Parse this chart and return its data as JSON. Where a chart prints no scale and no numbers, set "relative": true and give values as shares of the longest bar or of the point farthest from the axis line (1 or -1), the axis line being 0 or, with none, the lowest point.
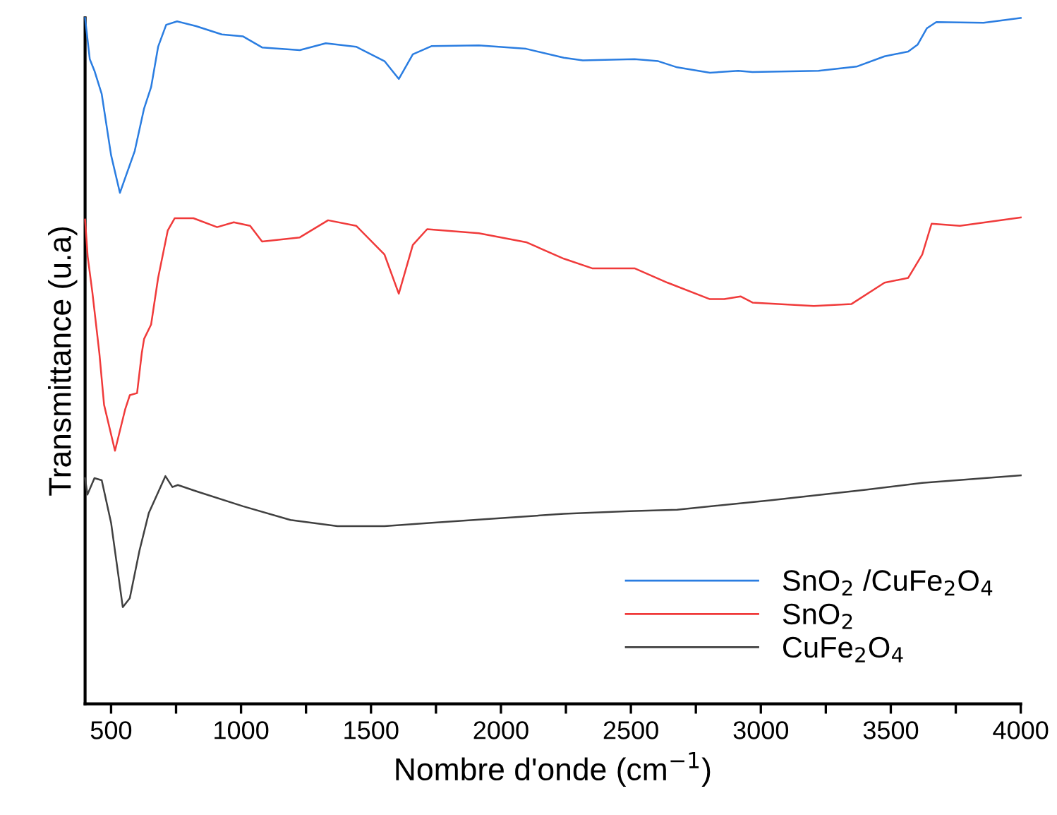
{
  "chart_data": {
    "type": "line",
    "relative": true,
    "xlabel": "Nombre d'onde (cm$^{−1}$)",
    "ylabel": "Transmittance (u.a)",
    "xlim": [
      400,
      4000
    ],
    "xticks": [
      500,
      {
        "value": 750,
        "label": null
      },
      1000,
      {
        "value": 1250,
        "label": null
      },
      1500,
      {
        "value": 1750,
        "label": null
      },
      2000,
      {
        "value": 2250,
        "label": null
      },
      2500,
      {
        "value": 2750,
        "label": null
      },
      3000,
      {
        "value": 3250,
        "label": null
      },
      3500,
      {
        "value": 3750,
        "label": null
      },
      4000
    ],
    "tick_labels": "x",
    "legend": "bottom right",
    "grid": false,
    "marker": "none",
    "line_style": "solid",
    "series": [
      {
        "name": "SnO$_{2}$ /CuFe$_{2}$O$_{4}$",
        "color": "#2a7de1",
        "x": [
          400,
          418,
          436,
          464,
          500,
          534,
          591,
          627,
          654,
          681,
          712,
          754,
          827,
          926,
          1008,
          1081,
          1226,
          1326,
          1443,
          1552,
          1607,
          1661,
          1734,
          1915,
          2097,
          2242,
          2315,
          2514,
          2605,
          2678,
          2804,
          2913,
          2968,
          3222,
          3368,
          3476,
          3567,
          3603,
          3639,
          3675,
          3857,
          4000
        ],
        "values": [
          1.0,
          0.94,
          0.923,
          0.889,
          0.8,
          0.745,
          0.806,
          0.868,
          0.899,
          0.958,
          0.99,
          0.995,
          0.988,
          0.976,
          0.973,
          0.957,
          0.953,
          0.963,
          0.958,
          0.937,
          0.911,
          0.947,
          0.959,
          0.96,
          0.955,
          0.942,
          0.938,
          0.94,
          0.937,
          0.928,
          0.92,
          0.923,
          0.921,
          0.923,
          0.929,
          0.944,
          0.951,
          0.961,
          0.985,
          0.994,
          0.993,
          1.0
        ]
      },
      {
        "name": "SnO$_{2}$",
        "color": "#f03a3a",
        "x": [
          400,
          410,
          428,
          455,
          473,
          515,
          554,
          572,
          600,
          618,
          627,
          654,
          681,
          718,
          745,
          817,
          908,
          972,
          1035,
          1081,
          1226,
          1335,
          1443,
          1552,
          1607,
          1661,
          1716,
          1915,
          2097,
          2242,
          2351,
          2514,
          2641,
          2804,
          2859,
          2922,
          2968,
          3204,
          3349,
          3476,
          3567,
          3621,
          3657,
          3766,
          4000
        ],
        "values": [
          0.706,
          0.652,
          0.6,
          0.511,
          0.436,
          0.369,
          0.429,
          0.45,
          0.453,
          0.511,
          0.532,
          0.553,
          0.621,
          0.69,
          0.708,
          0.708,
          0.695,
          0.702,
          0.697,
          0.674,
          0.68,
          0.705,
          0.697,
          0.655,
          0.598,
          0.669,
          0.692,
          0.686,
          0.673,
          0.649,
          0.635,
          0.635,
          0.614,
          0.59,
          0.59,
          0.594,
          0.585,
          0.58,
          0.583,
          0.614,
          0.621,
          0.655,
          0.7,
          0.697,
          0.709
        ]
      },
      {
        "name": "CuFe$_{2}$O$_{4}$",
        "color": "#404040",
        "x": [
          400,
          409,
          436,
          464,
          500,
          545,
          572,
          609,
          645,
          709,
          736,
          757,
          827,
          1008,
          1190,
          1371,
          1552,
          1734,
          2006,
          2242,
          2496,
          2678,
          3041,
          3403,
          3621,
          4000
        ],
        "values": [
          0.329,
          0.305,
          0.329,
          0.326,
          0.264,
          0.141,
          0.154,
          0.223,
          0.278,
          0.332,
          0.316,
          0.319,
          0.31,
          0.288,
          0.268,
          0.259,
          0.259,
          0.264,
          0.271,
          0.277,
          0.281,
          0.283,
          0.297,
          0.312,
          0.322,
          0.333
        ]
      }
    ]
  }
}
